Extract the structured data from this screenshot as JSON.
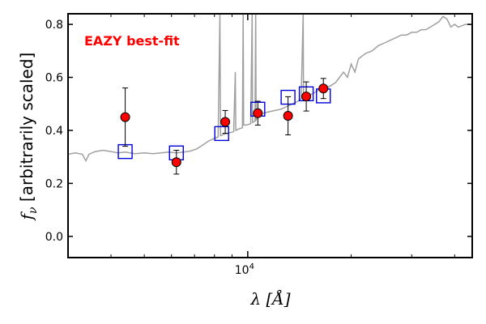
{
  "chart_data": {
    "type": "scatter",
    "xscale": "log",
    "xlim": [
      3000,
      45000
    ],
    "ylim": [
      -0.08,
      0.84
    ],
    "xticks": [
      {
        "value": 10000,
        "label": "10",
        "sup": "4"
      }
    ],
    "yticks": [
      {
        "value": 0.0,
        "label": "0.0"
      },
      {
        "value": 0.2,
        "label": "0.2"
      },
      {
        "value": 0.4,
        "label": "0.4"
      },
      {
        "value": 0.6,
        "label": "0.6"
      },
      {
        "value": 0.8,
        "label": "0.8"
      }
    ],
    "xlabel": "λ [Å]",
    "ylabel": "f",
    "ylabel_sub": "ν",
    "ylabel_rest": " [arbitrarily scaled]",
    "annotation": "EAZY best-fit",
    "annotation_color": "#ff0000",
    "observed": {
      "color": "#ff0000",
      "points": [
        {
          "x": 4400,
          "y": 0.45,
          "yerr": 0.11
        },
        {
          "x": 6200,
          "y": 0.28,
          "yerr": 0.045
        },
        {
          "x": 8600,
          "y": 0.432,
          "yerr": 0.043
        },
        {
          "x": 10700,
          "y": 0.465,
          "yerr": 0.045
        },
        {
          "x": 13100,
          "y": 0.455,
          "yerr": 0.072
        },
        {
          "x": 14800,
          "y": 0.528,
          "yerr": 0.055
        },
        {
          "x": 16600,
          "y": 0.558,
          "yerr": 0.038
        }
      ]
    },
    "model_photometry": {
      "color": "#0000dd",
      "points": [
        {
          "x": 4400,
          "y": 0.32
        },
        {
          "x": 6200,
          "y": 0.315
        },
        {
          "x": 8400,
          "y": 0.388
        },
        {
          "x": 10700,
          "y": 0.48
        },
        {
          "x": 13100,
          "y": 0.525
        },
        {
          "x": 14800,
          "y": 0.538
        },
        {
          "x": 16600,
          "y": 0.53
        }
      ]
    },
    "template_sed": {
      "color": "#a0a0a0",
      "points": [
        [
          3000,
          0.31
        ],
        [
          3150,
          0.315
        ],
        [
          3300,
          0.31
        ],
        [
          3380,
          0.285
        ],
        [
          3450,
          0.31
        ],
        [
          3600,
          0.32
        ],
        [
          3800,
          0.325
        ],
        [
          4000,
          0.32
        ],
        [
          4200,
          0.315
        ],
        [
          4400,
          0.318
        ],
        [
          4700,
          0.312
        ],
        [
          5000,
          0.315
        ],
        [
          5300,
          0.312
        ],
        [
          5600,
          0.315
        ],
        [
          5900,
          0.318
        ],
        [
          6200,
          0.315
        ],
        [
          6500,
          0.318
        ],
        [
          6800,
          0.322
        ],
        [
          7100,
          0.33
        ],
        [
          7400,
          0.345
        ],
        [
          7700,
          0.36
        ],
        [
          8000,
          0.37
        ],
        [
          8200,
          0.375
        ],
        [
          8300,
          0.84
        ],
        [
          8330,
          0.38
        ],
        [
          8500,
          0.385
        ],
        [
          8800,
          0.39
        ],
        [
          9100,
          0.395
        ],
        [
          9200,
          0.62
        ],
        [
          9230,
          0.4
        ],
        [
          9400,
          0.405
        ],
        [
          9650,
          0.41
        ],
        [
          9700,
          0.84
        ],
        [
          9730,
          0.42
        ],
        [
          9900,
          0.42
        ],
        [
          10200,
          0.425
        ],
        [
          10300,
          0.84
        ],
        [
          10330,
          0.43
        ],
        [
          10500,
          0.435
        ],
        [
          10550,
          0.84
        ],
        [
          10580,
          0.44
        ],
        [
          10700,
          0.45
        ],
        [
          10900,
          0.46
        ],
        [
          11100,
          0.465
        ],
        [
          11500,
          0.47
        ],
        [
          12000,
          0.475
        ],
        [
          12500,
          0.48
        ],
        [
          13000,
          0.49
        ],
        [
          13500,
          0.5
        ],
        [
          14000,
          0.51
        ],
        [
          14300,
          0.52
        ],
        [
          14500,
          0.84
        ],
        [
          14530,
          0.52
        ],
        [
          15000,
          0.53
        ],
        [
          15500,
          0.54
        ],
        [
          16000,
          0.55
        ],
        [
          16500,
          0.56
        ],
        [
          17000,
          0.56
        ],
        [
          17500,
          0.57
        ],
        [
          18000,
          0.58
        ],
        [
          18500,
          0.6
        ],
        [
          19000,
          0.62
        ],
        [
          19500,
          0.6
        ],
        [
          20000,
          0.65
        ],
        [
          20500,
          0.62
        ],
        [
          21000,
          0.67
        ],
        [
          22000,
          0.69
        ],
        [
          23000,
          0.7
        ],
        [
          24000,
          0.72
        ],
        [
          25000,
          0.73
        ],
        [
          26000,
          0.74
        ],
        [
          27000,
          0.75
        ],
        [
          28000,
          0.76
        ],
        [
          29000,
          0.76
        ],
        [
          30000,
          0.77
        ],
        [
          31000,
          0.77
        ],
        [
          32000,
          0.78
        ],
        [
          33000,
          0.78
        ],
        [
          34000,
          0.79
        ],
        [
          35000,
          0.8
        ],
        [
          36000,
          0.81
        ],
        [
          37000,
          0.83
        ],
        [
          38000,
          0.82
        ],
        [
          39000,
          0.79
        ],
        [
          40000,
          0.8
        ],
        [
          41000,
          0.79
        ],
        [
          43000,
          0.8
        ],
        [
          45000,
          0.8
        ]
      ]
    }
  }
}
